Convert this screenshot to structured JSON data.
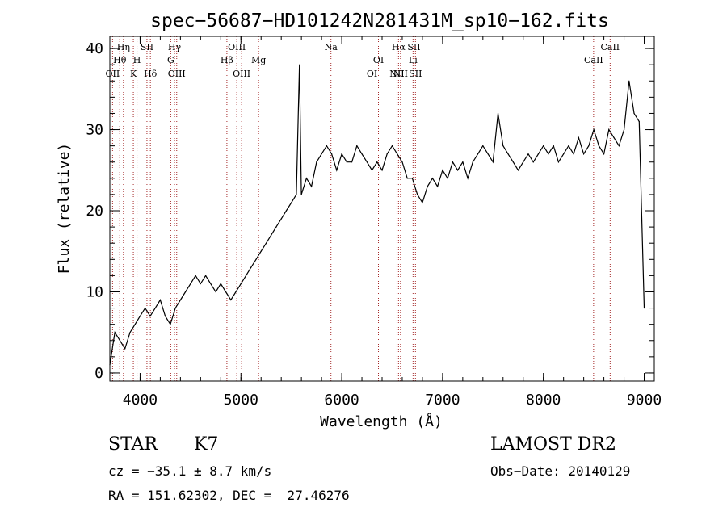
{
  "chart_data": {
    "type": "line",
    "title": "spec−56687−HD101242N281431M_sp10−162.fits",
    "xlabel": "Wavelength (Å)",
    "ylabel": "Flux (relative)",
    "xlim": [
      3700,
      9100
    ],
    "ylim": [
      -1,
      41.5
    ],
    "xticks": [
      4000,
      5000,
      6000,
      7000,
      8000,
      9000
    ],
    "yticks": [
      0,
      10,
      20,
      30,
      40
    ],
    "grid": false,
    "series": [
      {
        "values_note": "",
        "x": [
          3700,
          3750,
          3800,
          3850,
          3900,
          3950,
          4000,
          4050,
          4100,
          4150,
          4200,
          4250,
          4300,
          4350,
          4400,
          4450,
          4500,
          4550,
          4600,
          4650,
          4700,
          4750,
          4800,
          4850,
          4900,
          4950,
          5000,
          5050,
          5100,
          5150,
          5200,
          5250,
          5300,
          5350,
          5400,
          5450,
          5500,
          5550,
          5580,
          5600,
          5650,
          5700,
          5750,
          5800,
          5850,
          5900,
          5950,
          6000,
          6050,
          6100,
          6150,
          6200,
          6250,
          6300,
          6350,
          6400,
          6450,
          6500,
          6550,
          6600,
          6650,
          6700,
          6750,
          6800,
          6850,
          6900,
          6950,
          7000,
          7050,
          7100,
          7150,
          7200,
          7250,
          7300,
          7350,
          7400,
          7450,
          7500,
          7550,
          7600,
          7650,
          7700,
          7750,
          7800,
          7850,
          7900,
          7950,
          8000,
          8050,
          8100,
          8150,
          8200,
          8250,
          8300,
          8350,
          8400,
          8450,
          8500,
          8550,
          8600,
          8650,
          8700,
          8750,
          8800,
          8850,
          8900,
          8950,
          9000
        ],
        "y": [
          1,
          5,
          4,
          3,
          5,
          6,
          7,
          8,
          7,
          8,
          9,
          7,
          6,
          8,
          9,
          10,
          11,
          12,
          11,
          12,
          11,
          10,
          11,
          10,
          9,
          10,
          11,
          12,
          13,
          14,
          15,
          16,
          17,
          18,
          19,
          20,
          21,
          22,
          38,
          22,
          24,
          23,
          26,
          27,
          28,
          27,
          25,
          27,
          26,
          26,
          28,
          27,
          26,
          25,
          26,
          25,
          27,
          28,
          27,
          26,
          24,
          24,
          22,
          21,
          23,
          24,
          23,
          25,
          24,
          26,
          25,
          26,
          24,
          26,
          27,
          28,
          27,
          26,
          32,
          28,
          27,
          26,
          25,
          26,
          27,
          26,
          27,
          28,
          27,
          28,
          26,
          27,
          28,
          27,
          29,
          27,
          28,
          30,
          28,
          27,
          30,
          29,
          28,
          30,
          36,
          32,
          31,
          8
        ]
      }
    ],
    "lines": [
      {
        "wavelength": 3727,
        "label": "OII",
        "row": 2
      },
      {
        "wavelength": 3798,
        "label": "Hθ",
        "row": 1
      },
      {
        "wavelength": 3835,
        "label": "Hη",
        "row": 0
      },
      {
        "wavelength": 3933,
        "label": "K",
        "row": 2
      },
      {
        "wavelength": 3969,
        "label": "H",
        "row": 1
      },
      {
        "wavelength": 4068,
        "label": "SII",
        "row": 0
      },
      {
        "wavelength": 4102,
        "label": "Hδ",
        "row": 2
      },
      {
        "wavelength": 4304,
        "label": "G",
        "row": 1
      },
      {
        "wavelength": 4341,
        "label": "Hγ",
        "row": 0
      },
      {
        "wavelength": 4363,
        "label": "OIII",
        "row": 2
      },
      {
        "wavelength": 4861,
        "label": "Hβ",
        "row": 1
      },
      {
        "wavelength": 4959,
        "label": "OIII",
        "row": 0
      },
      {
        "wavelength": 5007,
        "label": "OIII",
        "row": 2
      },
      {
        "wavelength": 5175,
        "label": "Mg",
        "row": 1
      },
      {
        "wavelength": 5893,
        "label": "Na",
        "row": 0
      },
      {
        "wavelength": 6300,
        "label": "OI",
        "row": 2
      },
      {
        "wavelength": 6364,
        "label": "OI",
        "row": 1
      },
      {
        "wavelength": 6548,
        "label": "NII",
        "row": 2
      },
      {
        "wavelength": 6563,
        "label": "Hα",
        "row": 0
      },
      {
        "wavelength": 6583,
        "label": "NII",
        "row": 2
      },
      {
        "wavelength": 6707,
        "label": "Li",
        "row": 1
      },
      {
        "wavelength": 6716,
        "label": "SII",
        "row": 0
      },
      {
        "wavelength": 6731,
        "label": "SII",
        "row": 2
      },
      {
        "wavelength": 8498,
        "label": "CaII",
        "row": 1
      },
      {
        "wavelength": 8662,
        "label": "CaII",
        "row": 0
      }
    ],
    "line_color": "#a52a2a"
  },
  "info": {
    "class": "STAR",
    "subclass": "K7",
    "cz": "cz = −35.1 ± 8.7 km/s",
    "coords": "RA = 151.62302, DEC =  27.46276",
    "survey": "LAMOST DR2",
    "obs_date": "Obs−Date: 20140129"
  }
}
